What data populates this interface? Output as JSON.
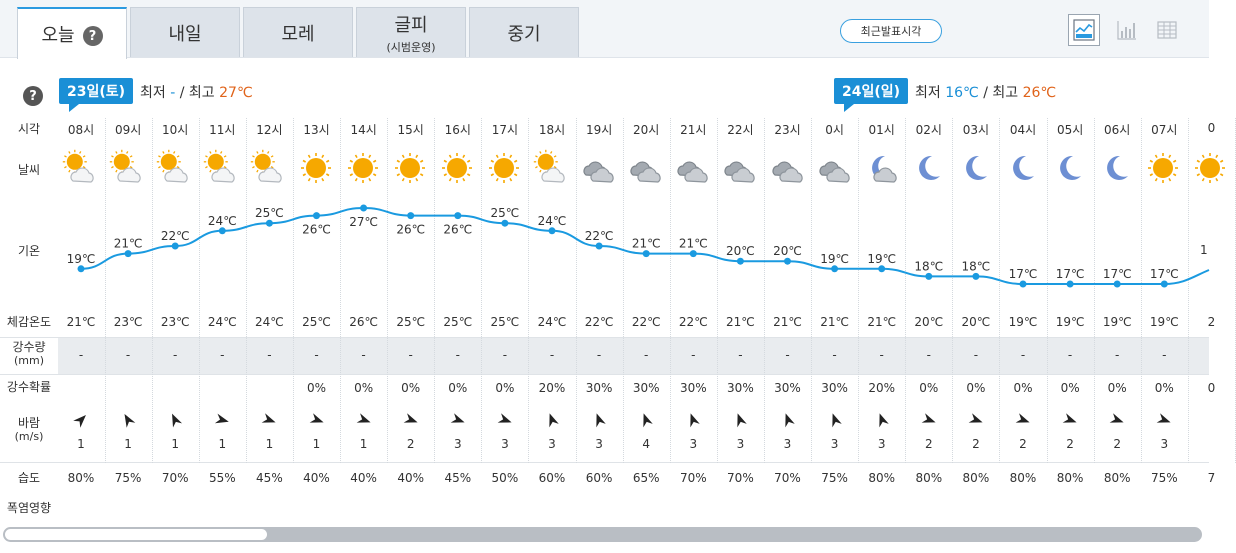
{
  "tabs": [
    {
      "label": "오늘",
      "sub": "",
      "active": true
    },
    {
      "label": "내일",
      "sub": ""
    },
    {
      "label": "모레",
      "sub": ""
    },
    {
      "label": "글피",
      "sub": "(시범운영)"
    },
    {
      "label": "중기",
      "sub": ""
    }
  ],
  "help_symbol": "?",
  "recent_button": "최근발표시각",
  "view_icons": [
    "line-chart-icon",
    "bar-chart-icon",
    "table-icon"
  ],
  "day1": {
    "badge": "23일(토)",
    "min_label": "최저",
    "min": "-",
    "sep": "/",
    "max_label": "최고",
    "max": "27℃"
  },
  "day2": {
    "badge": "24일(일)",
    "min_label": "최저",
    "min": "16℃",
    "sep": "/",
    "max_label": "최고",
    "max": "26℃"
  },
  "row_labels": {
    "time": "시각",
    "weather": "날씨",
    "temp": "기온",
    "feels": "체감온도",
    "precip": "강수량",
    "precip_unit": "(mm)",
    "prob": "강수확률",
    "wind": "바람",
    "wind_unit": "(m/s)",
    "humidity": "습도",
    "heat": "폭염영향"
  },
  "hours": [
    "08시",
    "09시",
    "10시",
    "11시",
    "12시",
    "13시",
    "14시",
    "15시",
    "16시",
    "17시",
    "18시",
    "19시",
    "20시",
    "21시",
    "22시",
    "23시",
    "0시",
    "01시",
    "02시",
    "03시",
    "04시",
    "05시",
    "06시",
    "07시",
    "0"
  ],
  "weather_icons": [
    "partly-cloudy",
    "partly-cloudy",
    "partly-cloudy",
    "partly-cloudy",
    "partly-cloudy",
    "sun",
    "sun",
    "sun",
    "sun",
    "sun",
    "partly-cloudy",
    "cloudy",
    "cloudy",
    "cloudy",
    "cloudy",
    "cloudy",
    "cloudy",
    "moon-cloud",
    "moon",
    "moon",
    "moon",
    "moon",
    "moon",
    "sun",
    "sun"
  ],
  "chart_data": {
    "type": "line",
    "x": [
      "08시",
      "09시",
      "10시",
      "11시",
      "12시",
      "13시",
      "14시",
      "15시",
      "16시",
      "17시",
      "18시",
      "19시",
      "20시",
      "21시",
      "22시",
      "23시",
      "0시",
      "01시",
      "02시",
      "03시",
      "04시",
      "05시",
      "06시",
      "07시"
    ],
    "series": [
      {
        "values": [
          19,
          21,
          22,
          24,
          25,
          26,
          27,
          26,
          26,
          25,
          24,
          22,
          21,
          21,
          20,
          20,
          19,
          19,
          18,
          18,
          17,
          17,
          17,
          17
        ]
      }
    ],
    "labels": [
      "19℃",
      "21℃",
      "22℃",
      "24℃",
      "25℃",
      "26℃",
      "27℃",
      "26℃",
      "26℃",
      "25℃",
      "24℃",
      "22℃",
      "21℃",
      "21℃",
      "20℃",
      "20℃",
      "19℃",
      "19℃",
      "18℃",
      "18℃",
      "17℃",
      "17℃",
      "17℃",
      "17℃"
    ],
    "edge_label": "1",
    "color": "#1a9ae0"
  },
  "feels": [
    "21℃",
    "23℃",
    "23℃",
    "24℃",
    "24℃",
    "25℃",
    "26℃",
    "25℃",
    "25℃",
    "25℃",
    "24℃",
    "22℃",
    "22℃",
    "22℃",
    "21℃",
    "21℃",
    "21℃",
    "21℃",
    "20℃",
    "20℃",
    "19℃",
    "19℃",
    "19℃",
    "19℃",
    "2"
  ],
  "precip": [
    "-",
    "-",
    "-",
    "-",
    "-",
    "-",
    "-",
    "-",
    "-",
    "-",
    "-",
    "-",
    "-",
    "-",
    "-",
    "-",
    "-",
    "-",
    "-",
    "-",
    "-",
    "-",
    "-",
    "-",
    ""
  ],
  "prob": [
    "",
    "",
    "",
    "",
    "",
    "0%",
    "0%",
    "0%",
    "0%",
    "0%",
    "20%",
    "30%",
    "30%",
    "30%",
    "30%",
    "30%",
    "30%",
    "20%",
    "0%",
    "0%",
    "0%",
    "0%",
    "0%",
    "0%",
    "0"
  ],
  "wind_speed": [
    "1",
    "1",
    "1",
    "1",
    "1",
    "1",
    "1",
    "2",
    "3",
    "3",
    "3",
    "3",
    "4",
    "3",
    "3",
    "3",
    "3",
    "3",
    "2",
    "2",
    "2",
    "2",
    "2",
    "3",
    ""
  ],
  "wind_dir_deg": [
    135,
    60,
    65,
    195,
    200,
    200,
    200,
    200,
    200,
    200,
    70,
    70,
    70,
    70,
    70,
    70,
    70,
    70,
    200,
    200,
    200,
    200,
    200,
    200,
    0
  ],
  "humidity": [
    "80%",
    "75%",
    "70%",
    "55%",
    "45%",
    "40%",
    "40%",
    "40%",
    "45%",
    "50%",
    "60%",
    "60%",
    "65%",
    "70%",
    "70%",
    "70%",
    "75%",
    "80%",
    "80%",
    "80%",
    "80%",
    "80%",
    "80%",
    "75%",
    "7"
  ],
  "colors": {
    "accent": "#1a8fd6",
    "max_temp": "#e0631a",
    "sun": "#f6a800",
    "cloud": "#9aa0a6",
    "moon": "#6d8fd3"
  }
}
